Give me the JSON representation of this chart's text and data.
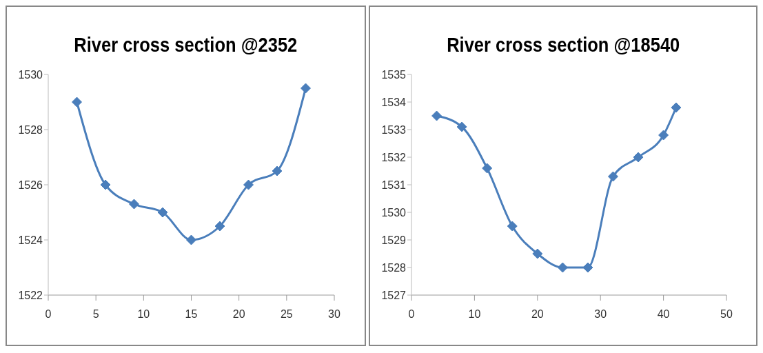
{
  "chart_data": [
    {
      "type": "line",
      "title": "River cross section @2352",
      "x": [
        3,
        6,
        9,
        12,
        15,
        18,
        21,
        24,
        27
      ],
      "series": [
        {
          "color": "#4a7ebb",
          "values": [
            1529,
            1526,
            1525.3,
            1525,
            1524,
            1524.5,
            1526,
            1526.5,
            1529.5
          ]
        }
      ],
      "xlim": [
        0,
        30
      ],
      "xticks": [
        0,
        5,
        10,
        15,
        20,
        25,
        30
      ],
      "ylim": [
        1522,
        1530
      ],
      "yticks": [
        1522,
        1524,
        1526,
        1528,
        1530
      ],
      "marker": "diamond",
      "grid": false,
      "legend": false
    },
    {
      "type": "line",
      "title": "River cross section @18540",
      "x": [
        4,
        8,
        12,
        16,
        20,
        24,
        28,
        32,
        36,
        40,
        42
      ],
      "series": [
        {
          "color": "#4a7ebb",
          "values": [
            1533.5,
            1533.1,
            1531.6,
            1529.5,
            1528.5,
            1528,
            1528,
            1531.3,
            1532,
            1532.8,
            1533.8
          ]
        }
      ],
      "xlim": [
        0,
        50
      ],
      "xticks": [
        0,
        10,
        20,
        30,
        40,
        50
      ],
      "ylim": [
        1527,
        1535
      ],
      "yticks": [
        1527,
        1528,
        1529,
        1530,
        1531,
        1532,
        1533,
        1534,
        1535
      ],
      "marker": "diamond",
      "grid": false,
      "legend": false
    }
  ]
}
